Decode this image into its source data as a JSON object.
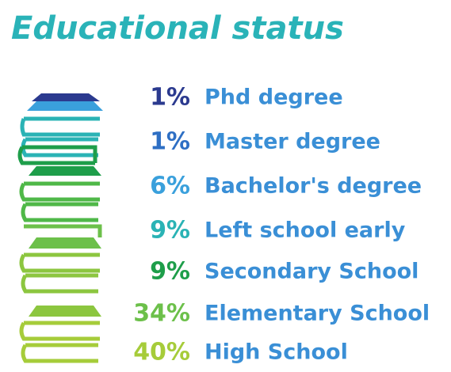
{
  "chart_data": {
    "type": "pictorial",
    "title": "Educational status",
    "categories": [
      "Phd degree",
      "Master degree",
      "Bachelor's degree",
      "Left school early",
      "Secondary School",
      "Elementary School",
      "High School"
    ],
    "values": [
      1,
      1,
      6,
      9,
      9,
      34,
      40
    ],
    "value_labels": [
      "1%",
      "1%",
      "6%",
      "9%",
      "9%",
      "34%",
      "40%"
    ],
    "colors": [
      "#2b3a8f",
      "#2e6fc4",
      "#3aa0dc",
      "#2ab3b5",
      "#1e9e4a",
      "#6cc04a",
      "#a6cc3a"
    ]
  }
}
